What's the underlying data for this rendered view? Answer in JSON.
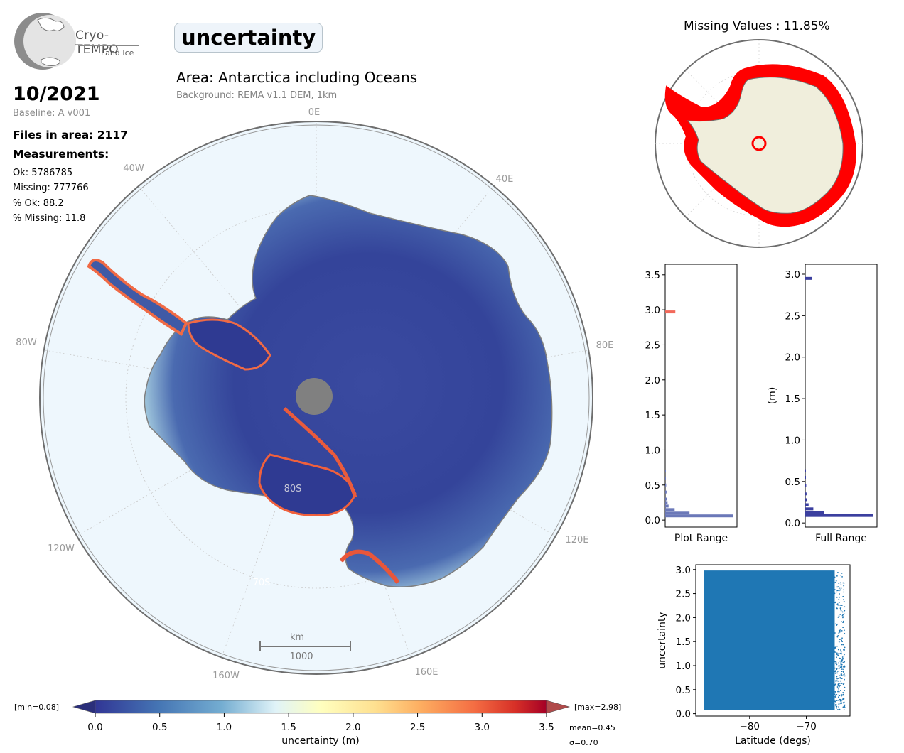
{
  "logo": {
    "title": "Cryo-TEMPO",
    "subtitle": "Land Ice"
  },
  "header": {
    "variable": "uncertainty",
    "area_title": "Area: Antarctica including Oceans",
    "background": "Background: REMA v1.1 DEM, 1km"
  },
  "stats": {
    "date": "10/2021",
    "baseline": "Baseline: A v001",
    "files": "Files in area: 2117",
    "measurements_title": "Measurements:",
    "ok": "Ok: 5786785",
    "missing": "Missing: 777766",
    "pct_ok": "% Ok: 88.2",
    "pct_missing": "% Missing: 11.8"
  },
  "map": {
    "lon_labels": {
      "l0E": "0E",
      "l40E": "40E",
      "l80E": "80E",
      "l120E": "120E",
      "l160E": "160E",
      "l160W": "160W",
      "l120W": "120W",
      "l80W": "80W",
      "l40W": "40W"
    },
    "lat_labels": {
      "l80S": "80S",
      "l70S": "70S"
    },
    "scale": {
      "unit": "km",
      "value": "1000"
    },
    "colors": {
      "ocean": "#eef7fd",
      "low": "#313695",
      "mid": "#ffffbf",
      "high": "#a50026",
      "coast": "#7f7f7f"
    }
  },
  "inset": {
    "title": "Missing Values : 11.85%",
    "land_color": "#f0eedc",
    "missing_color": "#ff0000"
  },
  "colorbar": {
    "min_label": "[min=0.08]",
    "max_label": "[max=2.98]",
    "ticks": [
      "0.0",
      "0.5",
      "1.0",
      "1.5",
      "2.0",
      "2.5",
      "3.0",
      "3.5"
    ],
    "label": "uncertainty (m)",
    "mean": "mean=0.45",
    "sigma": "σ=0.70"
  },
  "chart_data": [
    {
      "type": "bar",
      "orientation": "horizontal",
      "name": "plot-range-histogram",
      "xlabel": "Plot Range",
      "ylabel": "",
      "ylim": [
        -0.1,
        3.65
      ],
      "yticks": [
        "0.0",
        "0.5",
        "1.0",
        "1.5",
        "2.0",
        "2.5",
        "3.0",
        "3.5"
      ],
      "bins": [
        {
          "y": 0.06,
          "value": 1.0
        },
        {
          "y": 0.1,
          "value": 0.36
        },
        {
          "y": 0.15,
          "value": 0.14
        },
        {
          "y": 0.2,
          "value": 0.05
        },
        {
          "y": 0.25,
          "value": 0.035
        },
        {
          "y": 0.3,
          "value": 0.025
        },
        {
          "y": 0.4,
          "value": 0.02
        },
        {
          "y": 0.5,
          "value": 0.015
        },
        {
          "y": 0.6,
          "value": 0.01
        },
        {
          "y": 0.7,
          "value": 0.008
        },
        {
          "y": 2.97,
          "value": 0.15
        }
      ],
      "colors": {
        "bulk": "#6b78b8",
        "top": "#f2695a"
      }
    },
    {
      "type": "bar",
      "orientation": "horizontal",
      "name": "full-range-histogram",
      "xlabel": "Full Range",
      "ylabel": "(m)",
      "ylim": [
        -0.05,
        3.12
      ],
      "yticks": [
        "0.0",
        "0.5",
        "1.0",
        "1.5",
        "2.0",
        "2.5",
        "3.0"
      ],
      "bins": [
        {
          "y": 0.09,
          "value": 1.0
        },
        {
          "y": 0.13,
          "value": 0.28
        },
        {
          "y": 0.17,
          "value": 0.12
        },
        {
          "y": 0.22,
          "value": 0.05
        },
        {
          "y": 0.28,
          "value": 0.03
        },
        {
          "y": 0.35,
          "value": 0.02
        },
        {
          "y": 0.45,
          "value": 0.015
        },
        {
          "y": 0.55,
          "value": 0.01
        },
        {
          "y": 0.63,
          "value": 0.007
        },
        {
          "y": 2.95,
          "value": 0.1
        }
      ],
      "colors": {
        "bulk": "#3b3f9f",
        "top": "#3b3f9f"
      }
    },
    {
      "type": "scatter",
      "name": "latitude-scatter",
      "xlabel": "Latitude (degs)",
      "ylabel": "uncertainty",
      "xlim": [
        -89.5,
        -62.3
      ],
      "ylim": [
        -0.05,
        3.1
      ],
      "xticks": [
        -80,
        -70
      ],
      "xtick_labels": [
        "−80",
        "−70"
      ],
      "yticks": [
        "0.0",
        "0.5",
        "1.0",
        "1.5",
        "2.0",
        "2.5",
        "3.0"
      ],
      "dense_region": {
        "x": [
          -88.0,
          -65.0
        ],
        "y": [
          0.08,
          2.98
        ]
      },
      "color": "#1f77b4"
    }
  ]
}
